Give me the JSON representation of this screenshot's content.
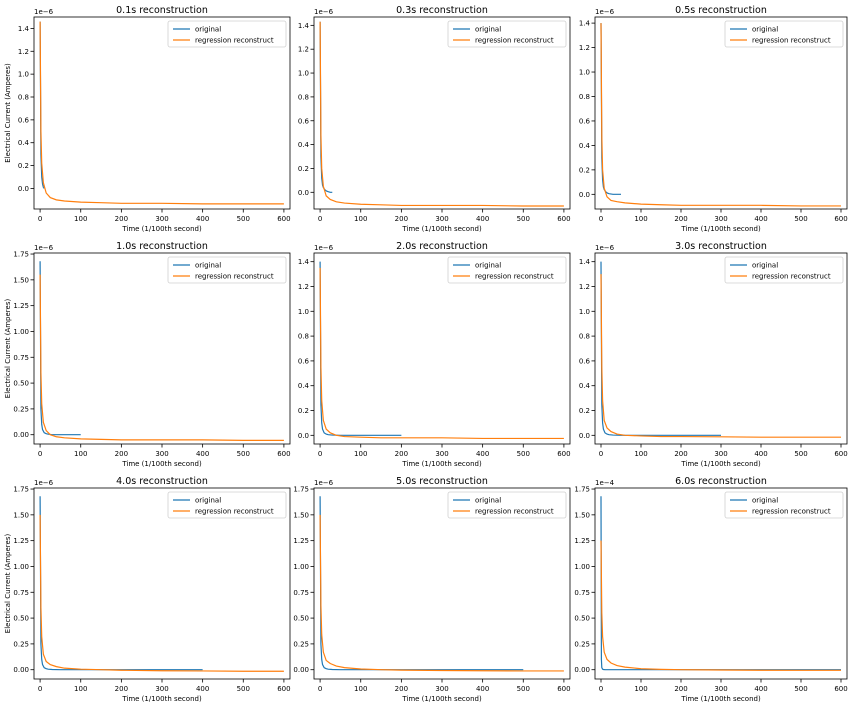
{
  "colors": {
    "original": "#1f77b4",
    "reconstruct": "#ff7f0e"
  },
  "chart_data": [
    {
      "type": "line",
      "title": "0.1s reconstruction",
      "xlabel": "Time (1/100th second)",
      "ylabel": "Electrical Current (Amperes)",
      "xlim": [
        -15,
        615
      ],
      "ylim": [
        -0.18,
        1.5
      ],
      "y_offset_text": "1e−6",
      "xticks": [
        "0",
        "100",
        "200",
        "300",
        "400",
        "500",
        "600"
      ],
      "yticks": [
        "0.0",
        "0.2",
        "0.4",
        "0.6",
        "0.8",
        "1.0",
        "1.2",
        "1.4"
      ],
      "xtick_values": [
        0,
        100,
        200,
        300,
        400,
        500,
        600
      ],
      "ytick_values": [
        0,
        0.2,
        0.4,
        0.6,
        0.8,
        1.0,
        1.2,
        1.4
      ],
      "legend": [
        "original",
        "regression reconstruct"
      ],
      "legend_position": "top-right",
      "series": [
        {
          "name": "original",
          "x": [
            0,
            2,
            4,
            6,
            8,
            10
          ],
          "y": [
            1.46,
            0.3,
            0.1,
            0.04,
            0.01,
            0.0
          ]
        },
        {
          "name": "regression reconstruct",
          "x": [
            0,
            2,
            4,
            8,
            15,
            25,
            40,
            60,
            100,
            150,
            200,
            300,
            400,
            500,
            600
          ],
          "y": [
            1.46,
            0.5,
            0.22,
            0.05,
            -0.04,
            -0.08,
            -0.1,
            -0.11,
            -0.12,
            -0.125,
            -0.13,
            -0.13,
            -0.135,
            -0.135,
            -0.135
          ]
        }
      ]
    },
    {
      "type": "line",
      "title": "0.3s reconstruction",
      "xlabel": "Time (1/100th second)",
      "ylabel": "",
      "xlim": [
        -15,
        615
      ],
      "ylim": [
        -0.14,
        1.47
      ],
      "y_offset_text": "1e−6",
      "xticks": [
        "0",
        "100",
        "200",
        "300",
        "400",
        "500",
        "600"
      ],
      "yticks": [
        "0.0",
        "0.2",
        "0.4",
        "0.6",
        "0.8",
        "1.0",
        "1.2",
        "1.4"
      ],
      "xtick_values": [
        0,
        100,
        200,
        300,
        400,
        500,
        600
      ],
      "ytick_values": [
        0,
        0.2,
        0.4,
        0.6,
        0.8,
        1.0,
        1.2,
        1.4
      ],
      "legend": [
        "original",
        "regression reconstruct"
      ],
      "legend_position": "top-right",
      "series": [
        {
          "name": "original",
          "x": [
            0,
            2,
            4,
            6,
            8,
            12,
            16,
            20,
            25,
            30
          ],
          "y": [
            1.43,
            0.3,
            0.12,
            0.06,
            0.04,
            0.02,
            0.01,
            0.005,
            0.0,
            0.0
          ]
        },
        {
          "name": "regression reconstruct",
          "x": [
            0,
            2,
            4,
            8,
            15,
            25,
            40,
            60,
            100,
            150,
            200,
            300,
            400,
            500,
            600
          ],
          "y": [
            1.43,
            0.48,
            0.2,
            0.05,
            -0.03,
            -0.06,
            -0.08,
            -0.09,
            -0.1,
            -0.105,
            -0.11,
            -0.11,
            -0.11,
            -0.115,
            -0.115
          ]
        }
      ]
    },
    {
      "type": "line",
      "title": "0.5s reconstruction",
      "xlabel": "Time (1/100th second)",
      "ylabel": "",
      "xlim": [
        -15,
        615
      ],
      "ylim": [
        -0.12,
        1.45
      ],
      "y_offset_text": "1e−6",
      "xticks": [
        "0",
        "100",
        "200",
        "300",
        "400",
        "500",
        "600"
      ],
      "yticks": [
        "0.0",
        "0.2",
        "0.4",
        "0.6",
        "0.8",
        "1.0",
        "1.2",
        "1.4"
      ],
      "xtick_values": [
        0,
        100,
        200,
        300,
        400,
        500,
        600
      ],
      "ytick_values": [
        0,
        0.2,
        0.4,
        0.6,
        0.8,
        1.0,
        1.2,
        1.4
      ],
      "legend": [
        "original",
        "regression reconstruct"
      ],
      "legend_position": "top-right",
      "series": [
        {
          "name": "original",
          "x": [
            0,
            2,
            4,
            6,
            8,
            12,
            16,
            20,
            30,
            40,
            50
          ],
          "y": [
            1.4,
            0.3,
            0.12,
            0.06,
            0.04,
            0.02,
            0.01,
            0.005,
            0.0,
            0.0,
            0.0
          ]
        },
        {
          "name": "regression reconstruct",
          "x": [
            0,
            2,
            4,
            8,
            15,
            25,
            40,
            60,
            100,
            150,
            200,
            300,
            400,
            500,
            600
          ],
          "y": [
            1.4,
            0.48,
            0.2,
            0.05,
            -0.02,
            -0.05,
            -0.06,
            -0.07,
            -0.08,
            -0.085,
            -0.09,
            -0.09,
            -0.09,
            -0.095,
            -0.095
          ]
        }
      ]
    },
    {
      "type": "line",
      "title": "1.0s reconstruction",
      "xlabel": "Time (1/100th second)",
      "ylabel": "Electrical Current (Amperes)",
      "xlim": [
        -15,
        615
      ],
      "ylim": [
        -0.09,
        1.76
      ],
      "y_offset_text": "1e−6",
      "xticks": [
        "0",
        "100",
        "200",
        "300",
        "400",
        "500",
        "600"
      ],
      "yticks": [
        "0.00",
        "0.25",
        "0.50",
        "0.75",
        "1.00",
        "1.25",
        "1.50",
        "1.75"
      ],
      "xtick_values": [
        0,
        100,
        200,
        300,
        400,
        500,
        600
      ],
      "ytick_values": [
        0,
        0.25,
        0.5,
        0.75,
        1.0,
        1.25,
        1.5,
        1.75
      ],
      "legend": [
        "original",
        "regression reconstruct"
      ],
      "legend_position": "top-right",
      "series": [
        {
          "name": "original",
          "x": [
            0,
            2,
            4,
            6,
            10,
            15,
            20,
            30,
            50,
            70,
            100
          ],
          "y": [
            1.68,
            0.25,
            0.1,
            0.05,
            0.02,
            0.01,
            0.005,
            0.0,
            0.0,
            0.0,
            0.0
          ]
        },
        {
          "name": "regression reconstruct",
          "x": [
            0,
            2,
            4,
            8,
            15,
            25,
            40,
            60,
            100,
            150,
            200,
            300,
            400,
            500,
            600
          ],
          "y": [
            1.55,
            0.6,
            0.3,
            0.12,
            0.04,
            0.0,
            -0.02,
            -0.03,
            -0.04,
            -0.045,
            -0.05,
            -0.05,
            -0.05,
            -0.055,
            -0.055
          ]
        }
      ]
    },
    {
      "type": "line",
      "title": "2.0s reconstruction",
      "xlabel": "Time (1/100th second)",
      "ylabel": "",
      "xlim": [
        -15,
        615
      ],
      "ylim": [
        -0.07,
        1.47
      ],
      "y_offset_text": "1e−6",
      "xticks": [
        "0",
        "100",
        "200",
        "300",
        "400",
        "500",
        "600"
      ],
      "yticks": [
        "0.0",
        "0.2",
        "0.4",
        "0.6",
        "0.8",
        "1.0",
        "1.2",
        "1.4"
      ],
      "xtick_values": [
        0,
        100,
        200,
        300,
        400,
        500,
        600
      ],
      "ytick_values": [
        0,
        0.2,
        0.4,
        0.6,
        0.8,
        1.0,
        1.2,
        1.4
      ],
      "legend": [
        "original",
        "regression reconstruct"
      ],
      "legend_position": "top-right",
      "series": [
        {
          "name": "original",
          "x": [
            0,
            2,
            4,
            6,
            10,
            15,
            20,
            30,
            50,
            100,
            150,
            200
          ],
          "y": [
            1.4,
            0.25,
            0.1,
            0.05,
            0.02,
            0.01,
            0.005,
            0.002,
            0.0,
            0.0,
            0.0,
            0.0
          ]
        },
        {
          "name": "regression reconstruct",
          "x": [
            0,
            2,
            4,
            8,
            15,
            25,
            40,
            60,
            100,
            150,
            200,
            300,
            400,
            500,
            600
          ],
          "y": [
            1.35,
            0.55,
            0.28,
            0.12,
            0.05,
            0.02,
            0.0,
            -0.01,
            -0.015,
            -0.02,
            -0.02,
            -0.02,
            -0.025,
            -0.025,
            -0.025
          ]
        }
      ]
    },
    {
      "type": "line",
      "title": "3.0s reconstruction",
      "xlabel": "Time (1/100th second)",
      "ylabel": "",
      "xlim": [
        -15,
        615
      ],
      "ylim": [
        -0.07,
        1.47
      ],
      "y_offset_text": "1e−6",
      "xticks": [
        "0",
        "100",
        "200",
        "300",
        "400",
        "500",
        "600"
      ],
      "yticks": [
        "0.0",
        "0.2",
        "0.4",
        "0.6",
        "0.8",
        "1.0",
        "1.2",
        "1.4"
      ],
      "xtick_values": [
        0,
        100,
        200,
        300,
        400,
        500,
        600
      ],
      "ytick_values": [
        0,
        0.2,
        0.4,
        0.6,
        0.8,
        1.0,
        1.2,
        1.4
      ],
      "legend": [
        "original",
        "regression reconstruct"
      ],
      "legend_position": "top-right",
      "series": [
        {
          "name": "original",
          "x": [
            0,
            2,
            4,
            6,
            10,
            15,
            20,
            30,
            50,
            100,
            200,
            300
          ],
          "y": [
            1.4,
            0.25,
            0.1,
            0.05,
            0.02,
            0.01,
            0.005,
            0.002,
            0.0,
            0.0,
            0.0,
            0.0
          ]
        },
        {
          "name": "regression reconstruct",
          "x": [
            0,
            2,
            4,
            8,
            15,
            25,
            40,
            60,
            100,
            150,
            200,
            300,
            400,
            500,
            600
          ],
          "y": [
            1.3,
            0.55,
            0.28,
            0.12,
            0.06,
            0.03,
            0.01,
            0.0,
            -0.005,
            -0.01,
            -0.01,
            -0.012,
            -0.015,
            -0.015,
            -0.015
          ]
        }
      ]
    },
    {
      "type": "line",
      "title": "4.0s reconstruction",
      "xlabel": "Time (1/100th second)",
      "ylabel": "Electrical Current (Amperes)",
      "xlim": [
        -15,
        615
      ],
      "ylim": [
        -0.09,
        1.76
      ],
      "y_offset_text": "1e−6",
      "xticks": [
        "0",
        "100",
        "200",
        "300",
        "400",
        "500",
        "600"
      ],
      "yticks": [
        "0.00",
        "0.25",
        "0.50",
        "0.75",
        "1.00",
        "1.25",
        "1.50",
        "1.75"
      ],
      "xtick_values": [
        0,
        100,
        200,
        300,
        400,
        500,
        600
      ],
      "ytick_values": [
        0,
        0.25,
        0.5,
        0.75,
        1.0,
        1.25,
        1.5,
        1.75
      ],
      "legend": [
        "original",
        "regression reconstruct"
      ],
      "legend_position": "top-right",
      "series": [
        {
          "name": "original",
          "x": [
            0,
            2,
            4,
            6,
            10,
            15,
            20,
            30,
            50,
            100,
            200,
            300,
            400
          ],
          "y": [
            1.68,
            0.25,
            0.1,
            0.05,
            0.02,
            0.01,
            0.005,
            0.002,
            0.0,
            0.0,
            0.0,
            0.0,
            0.0
          ]
        },
        {
          "name": "regression reconstruct",
          "x": [
            0,
            2,
            4,
            8,
            15,
            25,
            40,
            60,
            100,
            150,
            200,
            300,
            400,
            500,
            600
          ],
          "y": [
            1.5,
            0.6,
            0.32,
            0.15,
            0.08,
            0.05,
            0.03,
            0.015,
            0.005,
            0.0,
            -0.005,
            -0.01,
            -0.012,
            -0.015,
            -0.015
          ]
        }
      ]
    },
    {
      "type": "line",
      "title": "5.0s reconstruction",
      "xlabel": "Time (1/100th second)",
      "ylabel": "",
      "xlim": [
        -15,
        615
      ],
      "ylim": [
        -0.09,
        1.76
      ],
      "y_offset_text": "1e−6",
      "xticks": [
        "0",
        "100",
        "200",
        "300",
        "400",
        "500",
        "600"
      ],
      "yticks": [
        "0.00",
        "0.25",
        "0.50",
        "0.75",
        "1.00",
        "1.25",
        "1.50",
        "1.75"
      ],
      "xtick_values": [
        0,
        100,
        200,
        300,
        400,
        500,
        600
      ],
      "ytick_values": [
        0,
        0.25,
        0.5,
        0.75,
        1.0,
        1.25,
        1.5,
        1.75
      ],
      "legend": [
        "original",
        "regression reconstruct"
      ],
      "legend_position": "top-right",
      "series": [
        {
          "name": "original",
          "x": [
            0,
            2,
            4,
            6,
            10,
            15,
            20,
            30,
            50,
            100,
            200,
            300,
            400,
            500
          ],
          "y": [
            1.68,
            0.25,
            0.1,
            0.05,
            0.02,
            0.01,
            0.005,
            0.002,
            0.0,
            0.0,
            0.0,
            0.0,
            0.0,
            0.0
          ]
        },
        {
          "name": "regression reconstruct",
          "x": [
            0,
            2,
            4,
            8,
            15,
            25,
            40,
            60,
            100,
            150,
            200,
            300,
            400,
            500,
            600
          ],
          "y": [
            1.5,
            0.62,
            0.34,
            0.17,
            0.09,
            0.06,
            0.035,
            0.02,
            0.007,
            0.0,
            -0.004,
            -0.008,
            -0.01,
            -0.012,
            -0.012
          ]
        }
      ]
    },
    {
      "type": "line",
      "title": "6.0s reconstruction",
      "xlabel": "Time (1/100th second)",
      "ylabel": "",
      "xlim": [
        -15,
        615
      ],
      "ylim": [
        -0.09,
        1.76
      ],
      "y_offset_text": "1e−4",
      "xticks": [
        "0",
        "100",
        "200",
        "300",
        "400",
        "500",
        "600"
      ],
      "yticks": [
        "0.00",
        "0.25",
        "0.50",
        "0.75",
        "1.00",
        "1.25",
        "1.50",
        "1.75"
      ],
      "xtick_values": [
        0,
        100,
        200,
        300,
        400,
        500,
        600
      ],
      "ytick_values": [
        0,
        0.25,
        0.5,
        0.75,
        1.0,
        1.25,
        1.5,
        1.75
      ],
      "legend": [
        "original",
        "regression reconstruct"
      ],
      "legend_position": "top-right",
      "series": [
        {
          "name": "original",
          "x": [
            0,
            1,
            2,
            4,
            6,
            10,
            20,
            50,
            100,
            200,
            300,
            400,
            500,
            600
          ],
          "y": [
            1.68,
            0.1,
            0.02,
            0.005,
            0.002,
            0.0,
            0.0,
            0.0,
            0.0,
            0.0,
            0.0,
            0.0,
            0.0,
            0.0
          ]
        },
        {
          "name": "regression reconstruct",
          "x": [
            0,
            2,
            4,
            8,
            15,
            25,
            40,
            60,
            100,
            150,
            200,
            300,
            400,
            500,
            600
          ],
          "y": [
            1.25,
            0.55,
            0.32,
            0.17,
            0.1,
            0.065,
            0.04,
            0.025,
            0.01,
            0.003,
            0.0,
            -0.003,
            -0.005,
            -0.006,
            -0.006
          ]
        }
      ]
    }
  ]
}
